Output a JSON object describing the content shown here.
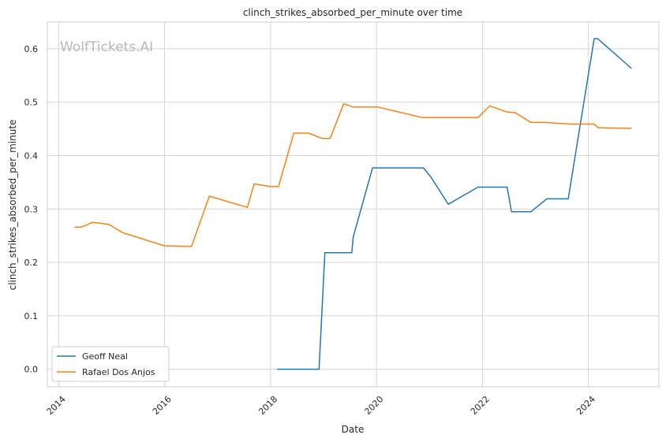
{
  "watermark": "WolfTickets.AI",
  "chart_data": {
    "type": "line",
    "title": "clinch_strikes_absorbed_per_minute over time",
    "xlabel": "Date",
    "ylabel": "clinch_strikes_absorbed_per_minute",
    "xlim": [
      "2013-10-15",
      "2025-05-01"
    ],
    "ylim": [
      -0.033,
      0.65
    ],
    "x_ticks": [
      "2014",
      "2016",
      "2018",
      "2020",
      "2022",
      "2024"
    ],
    "y_ticks": [
      "0.0",
      "0.1",
      "0.2",
      "0.3",
      "0.4",
      "0.5",
      "0.6"
    ],
    "grid": true,
    "legend_position": "bottom-left",
    "series": [
      {
        "name": "Geoff Neal",
        "color": "#1f77b4",
        "points": [
          [
            "2018-02-15",
            0.0
          ],
          [
            "2018-12-01",
            0.0
          ],
          [
            "2019-01-10",
            0.218
          ],
          [
            "2019-07-15",
            0.218
          ],
          [
            "2019-07-25",
            0.248
          ],
          [
            "2019-12-05",
            0.377
          ],
          [
            "2020-11-20",
            0.377
          ],
          [
            "2021-01-10",
            0.36
          ],
          [
            "2021-05-10",
            0.309
          ],
          [
            "2021-12-01",
            0.341
          ],
          [
            "2022-06-20",
            0.341
          ],
          [
            "2022-07-20",
            0.295
          ],
          [
            "2022-12-01",
            0.295
          ],
          [
            "2023-03-20",
            0.319
          ],
          [
            "2023-08-15",
            0.319
          ],
          [
            "2024-02-10",
            0.619
          ],
          [
            "2024-03-05",
            0.619
          ],
          [
            "2024-10-25",
            0.563
          ]
        ]
      },
      {
        "name": "Rafael Dos Anjos",
        "color": "#ff7f0e",
        "points": [
          [
            "2014-04-20",
            0.266
          ],
          [
            "2014-06-05",
            0.266
          ],
          [
            "2014-08-25",
            0.275
          ],
          [
            "2014-12-15",
            0.271
          ],
          [
            "2015-03-15",
            0.256
          ],
          [
            "2015-12-30",
            0.231
          ],
          [
            "2016-07-05",
            0.23
          ],
          [
            "2016-11-05",
            0.324
          ],
          [
            "2017-07-25",
            0.303
          ],
          [
            "2017-09-10",
            0.347
          ],
          [
            "2017-12-30",
            0.342
          ],
          [
            "2018-02-25",
            0.342
          ],
          [
            "2018-06-10",
            0.442
          ],
          [
            "2018-09-20",
            0.442
          ],
          [
            "2018-12-25",
            0.432
          ],
          [
            "2019-02-15",
            0.432
          ],
          [
            "2019-05-20",
            0.497
          ],
          [
            "2019-07-25",
            0.491
          ],
          [
            "2020-01-10",
            0.491
          ],
          [
            "2020-11-15",
            0.471
          ],
          [
            "2021-11-30",
            0.471
          ],
          [
            "2022-02-20",
            0.493
          ],
          [
            "2022-06-15",
            0.482
          ],
          [
            "2022-08-15",
            0.48
          ],
          [
            "2022-12-01",
            0.462
          ],
          [
            "2023-03-10",
            0.462
          ],
          [
            "2023-09-01",
            0.459
          ],
          [
            "2024-02-10",
            0.459
          ],
          [
            "2024-03-10",
            0.452
          ],
          [
            "2024-10-25",
            0.451
          ]
        ]
      }
    ]
  }
}
